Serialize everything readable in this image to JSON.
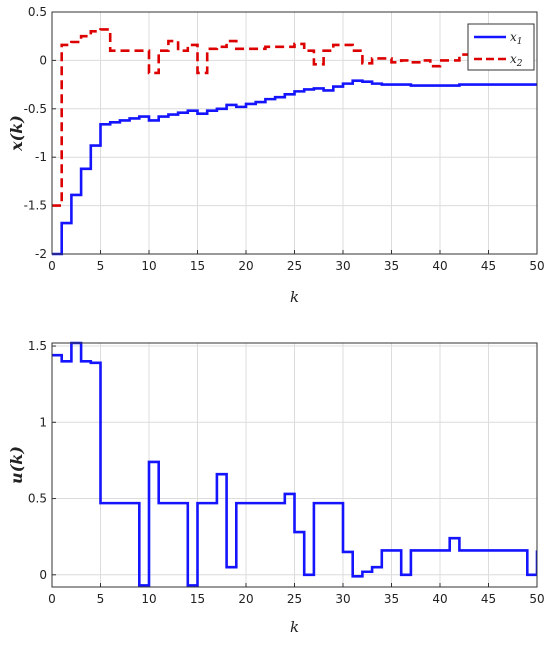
{
  "chart_data": [
    {
      "type": "line",
      "step": true,
      "xlabel": "k",
      "ylabel": "x(k)",
      "xlim": [
        0,
        50
      ],
      "ylim": [
        -2,
        0.5
      ],
      "xticks": [
        "0",
        "5",
        "10",
        "15",
        "20",
        "25",
        "30",
        "35",
        "40",
        "45",
        "50"
      ],
      "yticks": [
        "-2",
        "-1.5",
        "-1",
        "-0.5",
        "0",
        "0.5"
      ],
      "grid": true,
      "legend_position": "top-right",
      "series": [
        {
          "name": "x1",
          "color": "#1414ff",
          "style": "solid",
          "x": [
            0,
            1,
            2,
            3,
            4,
            5,
            6,
            7,
            8,
            9,
            10,
            11,
            12,
            13,
            14,
            15,
            16,
            17,
            18,
            19,
            20,
            21,
            22,
            23,
            24,
            25,
            26,
            27,
            28,
            29,
            30,
            31,
            32,
            33,
            34,
            35,
            36,
            37,
            38,
            39,
            40,
            41,
            42,
            43,
            44,
            45,
            46,
            47,
            48,
            49,
            50
          ],
          "y": [
            -2.0,
            -1.68,
            -1.39,
            -1.12,
            -0.88,
            -0.66,
            -0.64,
            -0.62,
            -0.6,
            -0.58,
            -0.62,
            -0.58,
            -0.56,
            -0.54,
            -0.52,
            -0.55,
            -0.52,
            -0.5,
            -0.46,
            -0.48,
            -0.45,
            -0.43,
            -0.4,
            -0.38,
            -0.35,
            -0.32,
            -0.3,
            -0.29,
            -0.31,
            -0.27,
            -0.24,
            -0.21,
            -0.22,
            -0.24,
            -0.25,
            -0.25,
            -0.25,
            -0.26,
            -0.26,
            -0.26,
            -0.26,
            -0.26,
            -0.25,
            -0.25,
            -0.25,
            -0.25,
            -0.25,
            -0.25,
            -0.25,
            -0.25,
            -0.25
          ]
        },
        {
          "name": "x2",
          "color": "#dd0000",
          "style": "dashed",
          "x": [
            0,
            1,
            2,
            3,
            4,
            5,
            6,
            7,
            8,
            9,
            10,
            11,
            12,
            13,
            14,
            15,
            16,
            17,
            18,
            19,
            20,
            21,
            22,
            23,
            24,
            25,
            26,
            27,
            28,
            29,
            30,
            31,
            32,
            33,
            34,
            35,
            36,
            37,
            38,
            39,
            40,
            41,
            42,
            43,
            44,
            45,
            46,
            47,
            48,
            49,
            50
          ],
          "y": [
            -1.5,
            0.16,
            0.19,
            0.25,
            0.3,
            0.32,
            0.1,
            0.1,
            0.1,
            0.1,
            -0.13,
            0.1,
            0.2,
            0.1,
            0.16,
            -0.13,
            0.12,
            0.14,
            0.2,
            0.12,
            0.12,
            0.12,
            0.14,
            0.14,
            0.14,
            0.17,
            0.1,
            -0.04,
            0.1,
            0.16,
            0.16,
            0.1,
            -0.03,
            0.02,
            0.02,
            -0.02,
            0.0,
            -0.02,
            0.0,
            -0.06,
            0.0,
            0.0,
            0.06,
            0.0,
            0.0,
            0.0,
            0.0,
            0.0,
            0.0,
            -0.04,
            -0.04
          ]
        }
      ]
    },
    {
      "type": "line",
      "step": true,
      "xlabel": "k",
      "ylabel": "u(k)",
      "xlim": [
        0,
        50
      ],
      "ylim": [
        -0.08,
        1.52
      ],
      "xticks": [
        "0",
        "5",
        "10",
        "15",
        "20",
        "25",
        "30",
        "35",
        "40",
        "45",
        "50"
      ],
      "yticks": [
        "0",
        "0.5",
        "1",
        "1.5"
      ],
      "grid": true,
      "series": [
        {
          "name": "",
          "color": "#1414ff",
          "style": "solid",
          "x": [
            0,
            1,
            2,
            3,
            4,
            5,
            6,
            7,
            8,
            9,
            10,
            11,
            12,
            13,
            14,
            15,
            16,
            17,
            18,
            19,
            20,
            21,
            22,
            23,
            24,
            25,
            26,
            27,
            28,
            29,
            30,
            31,
            32,
            33,
            34,
            35,
            36,
            37,
            38,
            39,
            40,
            41,
            42,
            43,
            44,
            45,
            46,
            47,
            48,
            49,
            50
          ],
          "y": [
            1.44,
            1.4,
            1.52,
            1.4,
            1.39,
            0.47,
            0.47,
            0.47,
            0.47,
            -0.07,
            0.74,
            0.47,
            0.47,
            0.47,
            -0.07,
            0.47,
            0.47,
            0.66,
            0.05,
            0.47,
            0.47,
            0.47,
            0.47,
            0.47,
            0.53,
            0.28,
            0.0,
            0.47,
            0.47,
            0.47,
            0.15,
            -0.01,
            0.02,
            0.05,
            0.16,
            0.16,
            0.0,
            0.16,
            0.16,
            0.16,
            0.16,
            0.24,
            0.16,
            0.16,
            0.16,
            0.16,
            0.16,
            0.16,
            0.16,
            0.0,
            0.16
          ]
        }
      ]
    }
  ]
}
